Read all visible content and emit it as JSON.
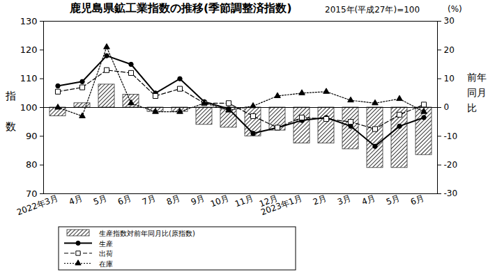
{
  "chart_data": {
    "type": "combo",
    "title": "鹿児島県鉱工業指数の推移(季節調整済指数)",
    "subtitle": "2015年(平成27年)=100",
    "ylabel": "指数",
    "y2label": "前年同月比",
    "y2unit": "(%)",
    "categories": [
      "2022年3月",
      "4月",
      "5月",
      "6月",
      "7月",
      "8月",
      "9月",
      "10月",
      "11月",
      "12月",
      "2023年1月",
      "2月",
      "3月",
      "4月",
      "5月",
      "6月"
    ],
    "series": [
      {
        "name": "生産指数対前年同月比(原指数)",
        "type": "bar",
        "axis": "y2",
        "color": "#333333",
        "values": [
          -3,
          1.5,
          8,
          4.5,
          -1.5,
          -1.5,
          -6,
          -7,
          -10,
          -8,
          -12.5,
          -12.5,
          -14.5,
          -21,
          -21,
          -16.5
        ]
      },
      {
        "name": "生産",
        "type": "line",
        "color": "#000000",
        "marker": "circle",
        "line_style": "solid",
        "values": [
          107.5,
          109,
          118,
          115,
          105,
          110,
          102,
          99.5,
          91,
          93,
          95.5,
          96.5,
          93.5,
          86.5,
          93.5,
          96.5
        ]
      },
      {
        "name": "出荷",
        "type": "line",
        "color": "#000000",
        "marker": "square-open",
        "line_style": "dashed",
        "values": [
          105.5,
          107,
          113,
          112,
          104,
          106.5,
          101.5,
          101.5,
          97,
          93,
          96.5,
          96,
          95,
          92.5,
          97.5,
          101
        ]
      },
      {
        "name": "在庫",
        "type": "line",
        "color": "#000000",
        "marker": "triangle",
        "line_style": "dotted",
        "values": [
          100,
          97,
          121,
          101.5,
          98.5,
          98.5,
          101.5,
          99,
          100.5,
          104,
          105,
          105.5,
          102.5,
          101.5,
          103,
          98.5
        ]
      }
    ],
    "ylim": [
      70,
      130
    ],
    "yticks": [
      70,
      80,
      90,
      100,
      110,
      120,
      130
    ],
    "y2lim": [
      -30,
      30
    ],
    "y2ticks": [
      -30,
      -20,
      -10,
      0,
      10,
      20,
      30
    ],
    "grid": false,
    "legend": "bottom"
  }
}
